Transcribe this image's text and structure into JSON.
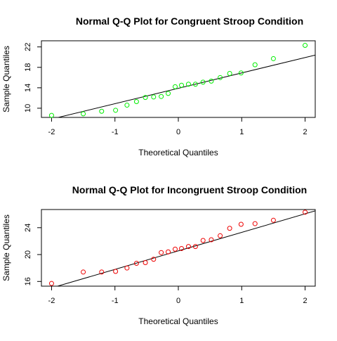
{
  "chart_data": [
    {
      "type": "scatter",
      "title": "Normal Q-Q Plot for Congruent Stroop Condition",
      "xlabel": "Theoretical Quantiles",
      "ylabel": "Sample Quantiles",
      "xlim": [
        -2.16,
        2.16
      ],
      "ylim": [
        8.2,
        23.2
      ],
      "xticks": [
        -2,
        -1,
        0,
        1,
        2
      ],
      "yticks": [
        10,
        14,
        18,
        22
      ],
      "tick_labels_x": [
        "-2",
        "-1",
        "0",
        "1",
        "2"
      ],
      "tick_labels_y": [
        "10",
        "14",
        "18",
        "22"
      ],
      "grid": false,
      "legend": "none",
      "point_color": "#00ee00",
      "line_color": "#000000",
      "series": [
        {
          "x": [
            -2.0,
            -1.5,
            -1.21,
            -0.99,
            -0.81,
            -0.66,
            -0.52,
            -0.39,
            -0.27,
            -0.16,
            -0.05,
            0.05,
            0.16,
            0.27,
            0.39,
            0.52,
            0.66,
            0.81,
            0.99,
            1.21,
            1.5,
            2.0
          ],
          "y": [
            8.6,
            8.9,
            9.4,
            9.6,
            10.6,
            11.3,
            12.1,
            12.2,
            12.3,
            12.9,
            14.2,
            14.5,
            14.7,
            14.7,
            15.1,
            15.3,
            16.0,
            16.8,
            16.9,
            18.5,
            19.7,
            22.3
          ]
        }
      ],
      "qq_line": {
        "x": [
          -2.16,
          2.16
        ],
        "y": [
          7.4,
          20.4
        ]
      }
    },
    {
      "type": "scatter",
      "title": "Normal Q-Q Plot for Incongruent Stroop Condition",
      "xlabel": "Theoretical Quantiles",
      "ylabel": "Sample Quantiles",
      "xlim": [
        -2.16,
        2.16
      ],
      "ylim": [
        15.3,
        26.7
      ],
      "xticks": [
        -2,
        -1,
        0,
        1,
        2
      ],
      "yticks": [
        16,
        20,
        24
      ],
      "tick_labels_x": [
        "-2",
        "-1",
        "0",
        "1",
        "2"
      ],
      "tick_labels_y": [
        "16",
        "20",
        "24"
      ],
      "grid": false,
      "legend": "none",
      "point_color": "#ee0000",
      "line_color": "#000000",
      "series": [
        {
          "x": [
            -2.0,
            -1.5,
            -1.21,
            -0.99,
            -0.81,
            -0.66,
            -0.52,
            -0.39,
            -0.27,
            -0.16,
            -0.05,
            0.05,
            0.16,
            0.27,
            0.39,
            0.52,
            0.66,
            0.81,
            0.99,
            1.21,
            1.5,
            2.0
          ],
          "y": [
            15.7,
            17.4,
            17.4,
            17.5,
            18.0,
            18.7,
            18.8,
            19.3,
            20.3,
            20.4,
            20.8,
            20.9,
            21.2,
            21.2,
            22.1,
            22.2,
            22.8,
            23.9,
            24.5,
            24.6,
            25.1,
            26.3
          ]
        }
      ],
      "qq_line": {
        "x": [
          -2.16,
          2.16
        ],
        "y": [
          14.6,
          26.5
        ]
      }
    }
  ]
}
